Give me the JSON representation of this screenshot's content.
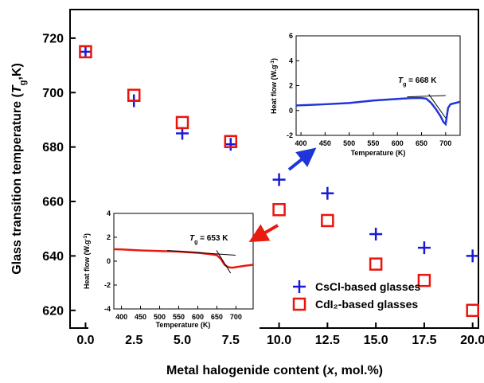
{
  "chart_data": [
    {
      "type": "scatter",
      "x_label": [
        {
          "text": "Metal halogenide content ("
        },
        {
          "text": "x",
          "style": "italic"
        },
        {
          "text": ", mol.%)"
        }
      ],
      "y_label": [
        {
          "text": "Glass transition temperature ("
        },
        {
          "text": "T",
          "style": "italic"
        },
        {
          "text": "g",
          "style": "sub"
        },
        {
          "text": ",K)"
        }
      ],
      "x": [
        0,
        2.5,
        5,
        7.5,
        10,
        12.5,
        15,
        17.5,
        20
      ],
      "series": [
        {
          "name": "CsCl-based glasses",
          "color": "#1a1ad6",
          "marker": "plus",
          "values": [
            715,
            697,
            685,
            681,
            668,
            663,
            648,
            643,
            640
          ]
        },
        {
          "name": "CdI₂-based glasses",
          "color": "#e8150d",
          "marker": "square",
          "values": [
            715,
            699,
            689,
            682,
            657,
            653,
            637,
            631,
            620
          ]
        }
      ],
      "xlim": [
        -0.8,
        20.3
      ],
      "xticks": [
        {
          "value": 0,
          "label": "0.0"
        },
        {
          "value": 2.5,
          "label": "2.5"
        },
        {
          "value": 5,
          "label": "5.0"
        },
        {
          "value": 7.5,
          "label": "7.5"
        },
        {
          "value": 10,
          "label": "10.0"
        },
        {
          "value": 12.5,
          "label": "12.5"
        },
        {
          "value": 15,
          "label": "15.0"
        },
        {
          "value": 17.5,
          "label": "17.5"
        },
        {
          "value": 20,
          "label": "20.0"
        }
      ],
      "ylim": [
        613.5,
        730.5
      ],
      "yticks": [
        620,
        640,
        660,
        680,
        700,
        720
      ],
      "legend": "lower right"
    },
    {
      "type": "line",
      "x_label": [
        {
          "text": "Temperature (K)"
        }
      ],
      "y_label": [
        {
          "text": "Heat flow (W.g"
        },
        {
          "text": "-1",
          "style": "sup"
        },
        {
          "text": ")"
        }
      ],
      "annotation": [
        {
          "text": "T",
          "style": "italic"
        },
        {
          "text": "g",
          "style": "sub"
        },
        {
          "text": " = 668 K"
        }
      ],
      "x": [
        390,
        400,
        450,
        500,
        550,
        600,
        630,
        650,
        660,
        670,
        680,
        690,
        695,
        700,
        705,
        710,
        720,
        730
      ],
      "series": [
        {
          "color": "#1f35d8",
          "values": [
            0.4,
            0.42,
            0.5,
            0.6,
            0.8,
            0.93,
            1.0,
            1.0,
            0.95,
            0.6,
            0.1,
            -0.5,
            -0.9,
            -1.1,
            0.2,
            0.5,
            0.6,
            0.7
          ]
        }
      ],
      "tangents": [
        {
          "x": [
            620,
            700
          ],
          "y": [
            1.1,
            1.2
          ]
        },
        {
          "x": [
            665,
            700
          ],
          "y": [
            1.3,
            -0.6
          ]
        }
      ],
      "xlim": [
        390,
        730
      ],
      "xticks": [
        400,
        450,
        500,
        550,
        600,
        650,
        700
      ],
      "ylim": [
        -2,
        6
      ],
      "yticks": [
        -2,
        0,
        2,
        4,
        6
      ]
    },
    {
      "type": "line",
      "x_label": [
        {
          "text": "Temperature (K)"
        }
      ],
      "y_label": [
        {
          "text": "Heat flow (W.g"
        },
        {
          "text": "-1",
          "style": "sup"
        },
        {
          "text": ")"
        }
      ],
      "annotation": [
        {
          "text": "T",
          "style": "italic"
        },
        {
          "text": "g",
          "style": "sub"
        },
        {
          "text": " = 653 K"
        }
      ],
      "x": [
        380,
        400,
        450,
        500,
        550,
        600,
        630,
        650,
        660,
        670,
        680,
        690,
        700,
        720,
        745
      ],
      "series": [
        {
          "color": "#e81b10",
          "values": [
            1.0,
            0.98,
            0.9,
            0.85,
            0.8,
            0.7,
            0.6,
            0.5,
            0.2,
            -0.3,
            -0.5,
            -0.55,
            -0.5,
            -0.4,
            -0.3
          ]
        }
      ],
      "tangents": [
        {
          "x": [
            520,
            699
          ],
          "y": [
            0.9,
            0.5
          ]
        },
        {
          "x": [
            649,
            686
          ],
          "y": [
            0.9,
            -1.0
          ]
        }
      ],
      "xlim": [
        380,
        745
      ],
      "xticks": [
        400,
        450,
        500,
        550,
        600,
        650,
        700
      ],
      "ylim": [
        -4,
        4
      ],
      "yticks": [
        -4,
        -2,
        0,
        2,
        4
      ]
    }
  ]
}
